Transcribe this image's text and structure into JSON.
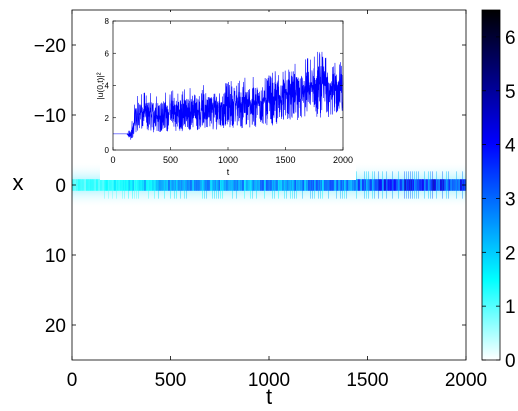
{
  "chart_data": [
    {
      "type": "heatmap",
      "xlabel": "t",
      "ylabel": "x",
      "xlim": [
        0,
        2000
      ],
      "ylim": [
        -25,
        25
      ],
      "y_axis_inverted": true,
      "x_ticks": [
        "0",
        "500",
        "1000",
        "1500",
        "2000"
      ],
      "y_ticks": [
        "−20",
        "−10",
        "0",
        "10",
        "20"
      ],
      "x_tick_values": [
        0,
        500,
        1000,
        1500,
        2000
      ],
      "y_tick_values": [
        -20,
        -10,
        0,
        10,
        20
      ],
      "colorbar": {
        "range": [
          0,
          6.5
        ],
        "ticks": [
          "0",
          "1",
          "2",
          "3",
          "4",
          "5",
          "6"
        ],
        "tick_values": [
          0,
          1,
          2,
          3,
          4,
          5,
          6
        ],
        "colors": [
          "#ffffff",
          "#00ffff",
          "#0000ff",
          "#000000"
        ]
      },
      "band": {
        "center_x": 0,
        "half_width": 1.5,
        "start_t": 150,
        "intensity_profile": [
          {
            "t": 0,
            "value": 1.0
          },
          {
            "t": 150,
            "value": 1.2
          },
          {
            "t": 500,
            "value": 2.4
          },
          {
            "t": 1000,
            "value": 2.6
          },
          {
            "t": 1400,
            "value": 2.8
          },
          {
            "t": 1600,
            "value": 3.6
          },
          {
            "t": 1800,
            "value": 3.8
          },
          {
            "t": 2000,
            "value": 3.5
          }
        ]
      }
    },
    {
      "type": "line",
      "xlabel": "t",
      "ylabel": "|u(0,t)|²",
      "xlim": [
        0,
        2000
      ],
      "ylim": [
        0,
        8
      ],
      "x_ticks": [
        "0",
        "500",
        "1000",
        "1500",
        "2000"
      ],
      "y_ticks": [
        "0",
        "2",
        "4",
        "6",
        "8"
      ],
      "x_tick_values": [
        0,
        500,
        1000,
        1500,
        2000
      ],
      "y_tick_values": [
        0,
        2,
        4,
        6,
        8
      ],
      "color": "#0000ff",
      "envelope": [
        {
          "t": 0,
          "low": 1.0,
          "high": 1.0
        },
        {
          "t": 120,
          "low": 1.0,
          "high": 1.0
        },
        {
          "t": 160,
          "low": 0.5,
          "high": 1.5
        },
        {
          "t": 200,
          "low": 1.1,
          "high": 3.6
        },
        {
          "t": 400,
          "low": 1.1,
          "high": 3.6
        },
        {
          "t": 700,
          "low": 1.2,
          "high": 3.9
        },
        {
          "t": 1000,
          "low": 1.3,
          "high": 4.4
        },
        {
          "t": 1300,
          "low": 1.4,
          "high": 4.7
        },
        {
          "t": 1600,
          "low": 1.8,
          "high": 5.4
        },
        {
          "t": 1800,
          "low": 2.0,
          "high": 6.3
        },
        {
          "t": 2000,
          "low": 2.0,
          "high": 5.6
        }
      ]
    }
  ]
}
